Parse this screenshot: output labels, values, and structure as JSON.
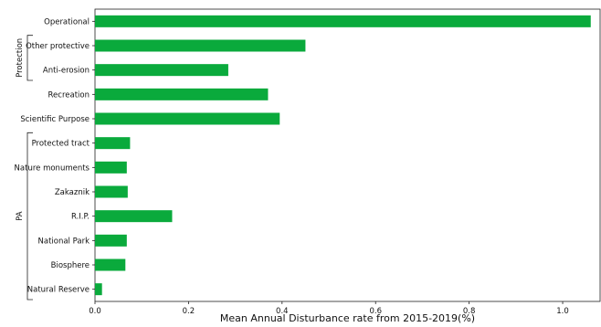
{
  "chart_data": {
    "type": "bar",
    "orientation": "horizontal",
    "title": "",
    "xlabel": "Mean Annual Disturbance rate from 2015-2019(%)",
    "ylabel": "",
    "xlim": [
      0,
      1.08
    ],
    "xticks": [
      "0.0",
      "0.2",
      "0.4",
      "0.6",
      "0.8",
      "1.0"
    ],
    "grid": false,
    "bar_color": "#0aaa3c",
    "categories": [
      "Operational",
      "Other protective",
      "Anti-erosion",
      "Recreation",
      "Scientific Purpose",
      "Protected tract",
      "Nature monuments",
      "Zakaznik",
      "R.I.P.",
      "National Park",
      "Biosphere",
      "Natural Reserve"
    ],
    "values": [
      1.06,
      0.45,
      0.285,
      0.37,
      0.395,
      0.075,
      0.068,
      0.07,
      0.165,
      0.068,
      0.065,
      0.015
    ],
    "groups": [
      {
        "label": "Protection",
        "from": 1,
        "to": 2
      },
      {
        "label": "PA",
        "from": 5,
        "to": 11
      }
    ]
  }
}
